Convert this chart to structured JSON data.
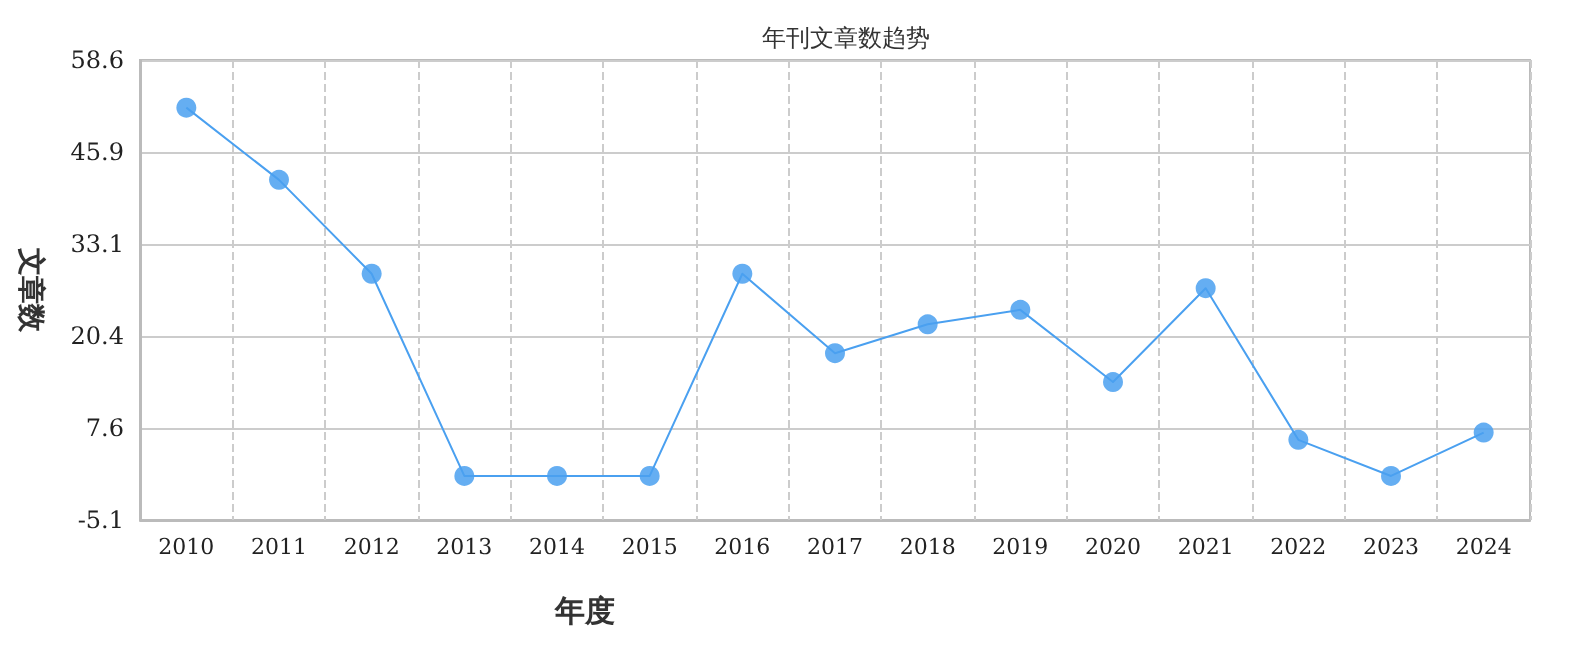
{
  "chart_data": {
    "type": "line",
    "title": "年刊文章数趋势",
    "xlabel": "年度",
    "ylabel": "文章数",
    "categories": [
      "2010",
      "2011",
      "2012",
      "2013",
      "2014",
      "2015",
      "2016",
      "2017",
      "2018",
      "2019",
      "2020",
      "2021",
      "2022",
      "2023",
      "2024"
    ],
    "series": [
      {
        "color": "#4aa0f0",
        "values": [
          52,
          42,
          29,
          1,
          1,
          1,
          29,
          18,
          22,
          24,
          14,
          27,
          6,
          1,
          7
        ]
      }
    ],
    "ylim": [
      -5.1,
      58.6
    ],
    "yticks": [
      -5.1,
      7.6,
      20.4,
      33.1,
      45.9,
      58.6
    ],
    "grid": true,
    "marker": "circle",
    "line_style": "solid"
  }
}
